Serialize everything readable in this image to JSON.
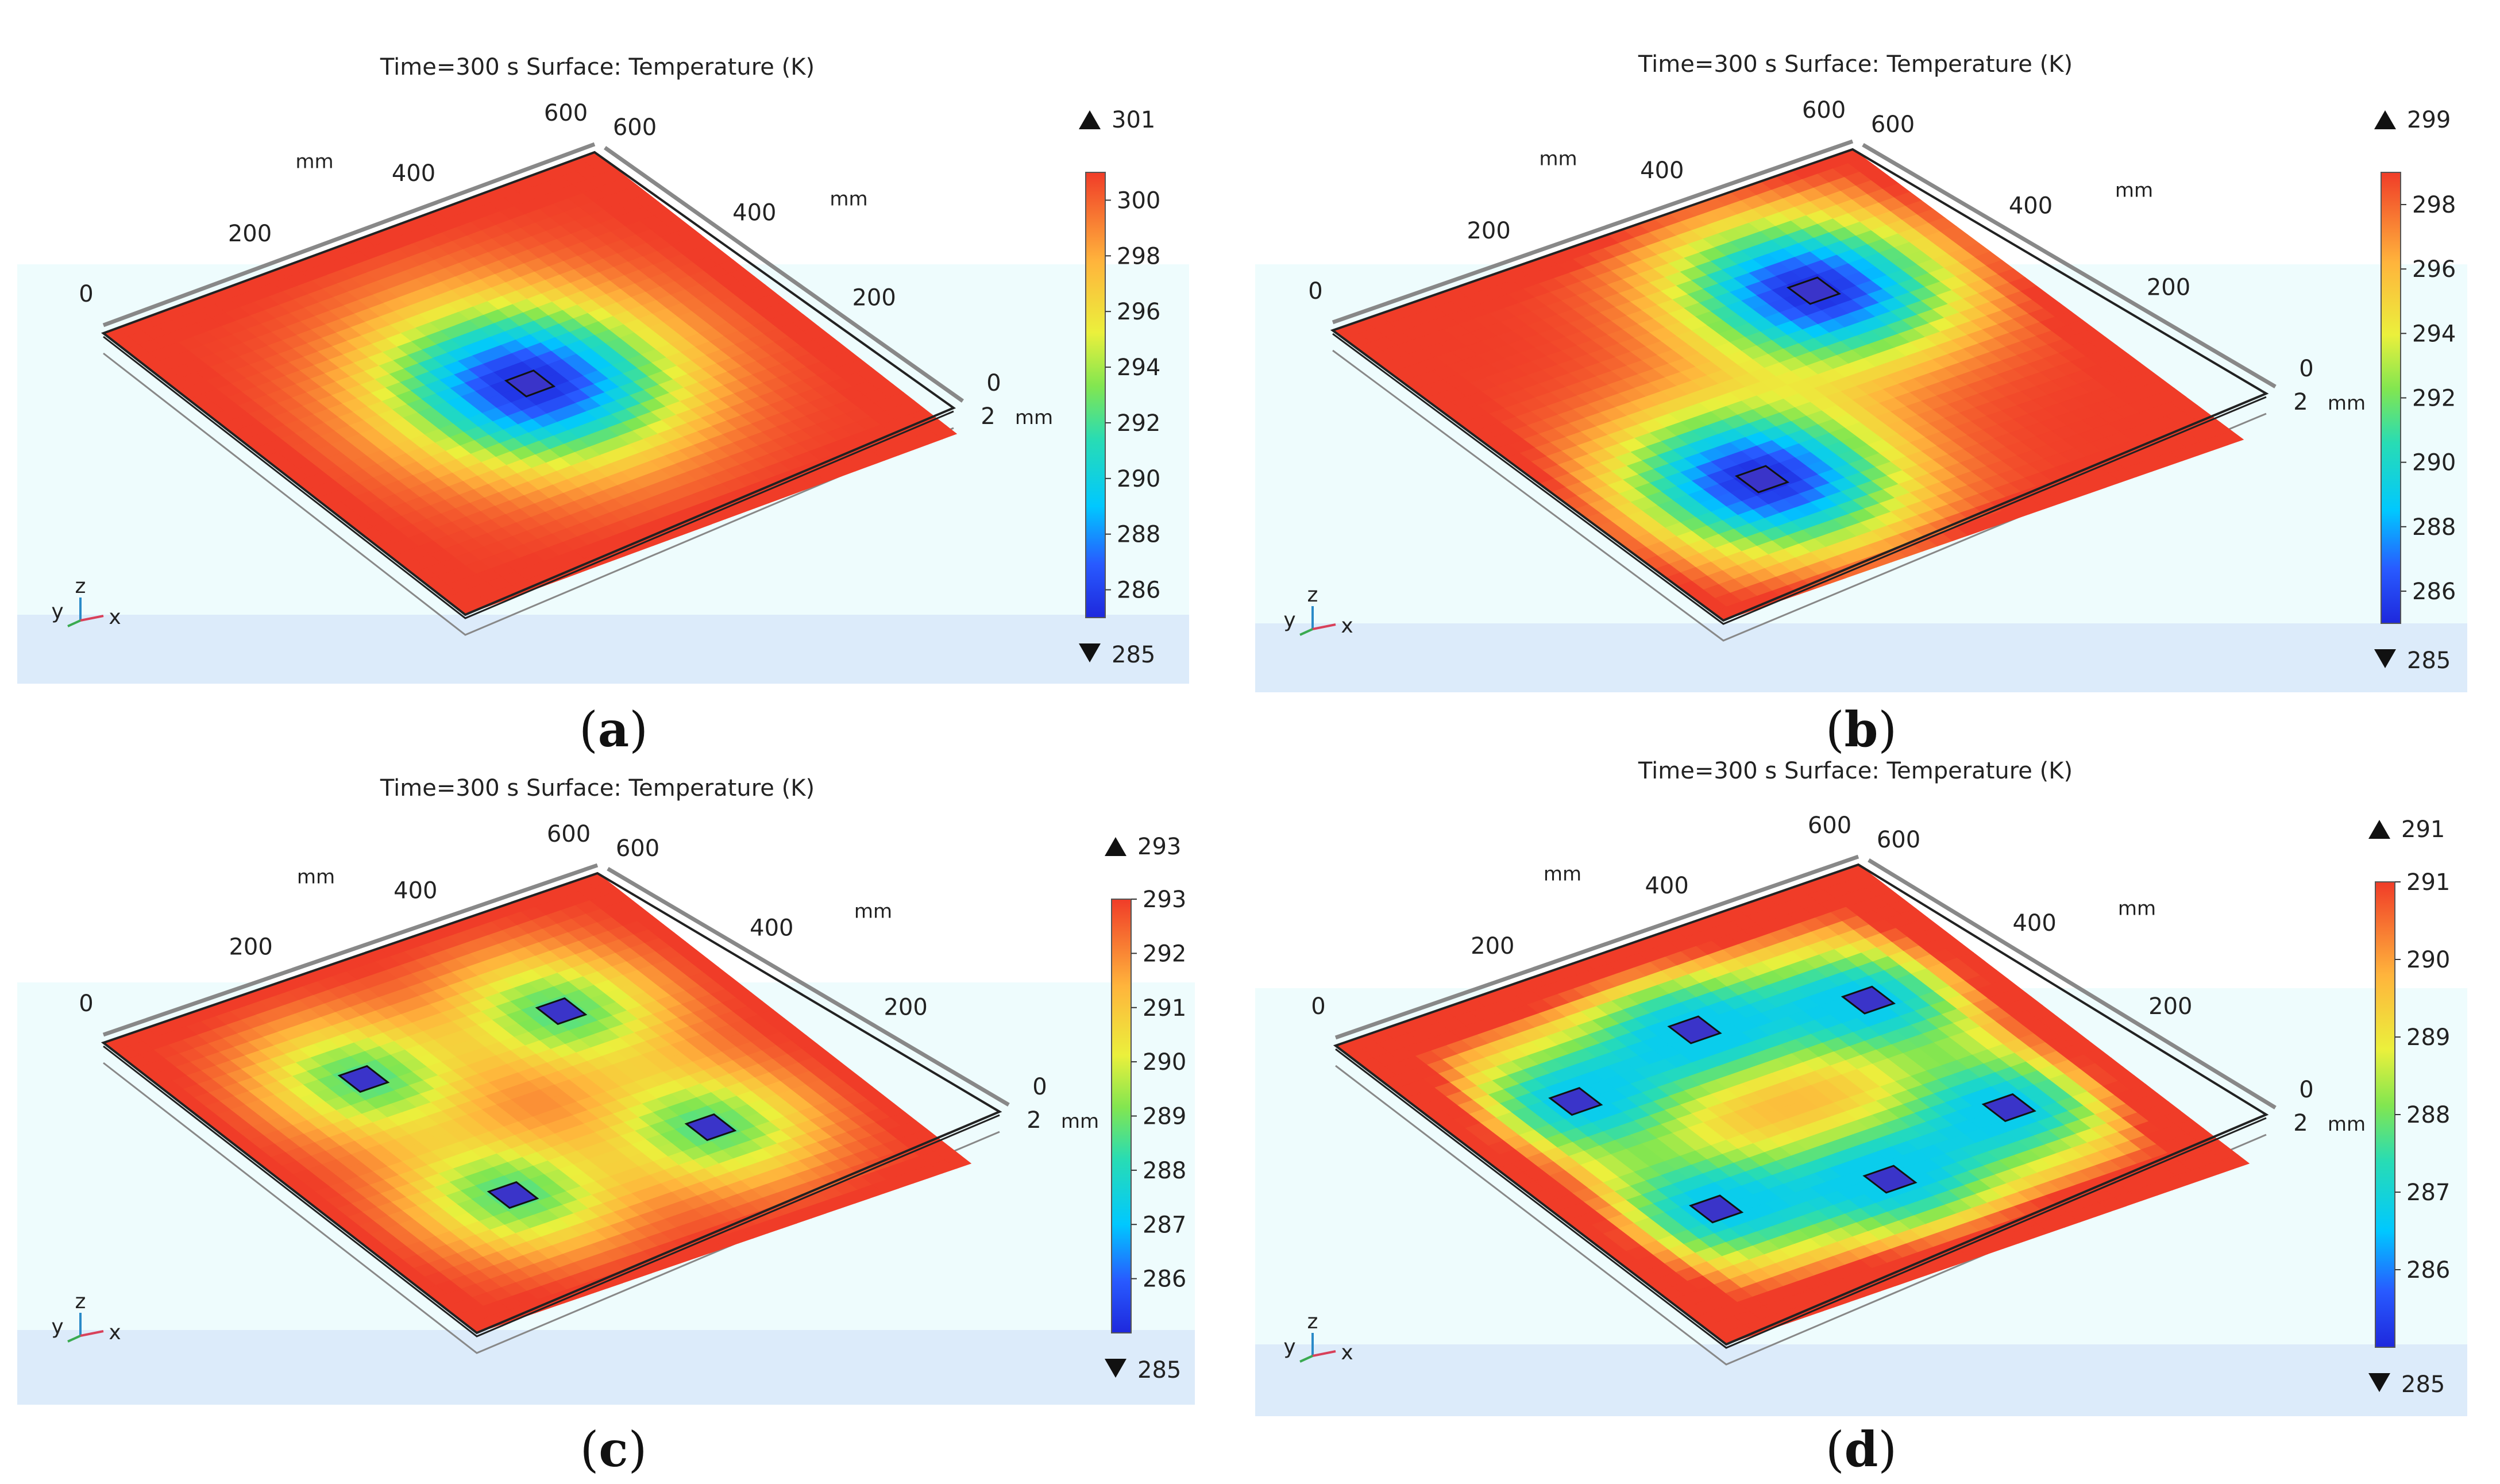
{
  "panels": [
    {
      "id": "a",
      "caption_letter": "a",
      "title_time": "Time=300 s",
      "title_surface": "Surface: Temperature (K)",
      "axis_left_label": "mm",
      "axis_right_label": "mm",
      "axis_z_label": "mm",
      "left_ticks": [
        "0",
        "200",
        "400",
        "600"
      ],
      "right_ticks": [
        "600",
        "400",
        "200",
        "0"
      ],
      "thickness_tick": "2",
      "colorbar": {
        "max_marker": "301",
        "min_marker": "285",
        "ticks": [
          "300",
          "298",
          "296",
          "294",
          "292",
          "290",
          "288",
          "286"
        ]
      },
      "triad": {
        "y": "y",
        "z": "z",
        "x": "x"
      },
      "sources": [
        {
          "u": 0.5,
          "v": 0.5
        }
      ],
      "min_T": 285,
      "max_T": 301
    },
    {
      "id": "b",
      "caption_letter": "b",
      "title_time": "Time=300 s",
      "title_surface": "Surface: Temperature (K)",
      "axis_left_label": "mm",
      "axis_right_label": "mm",
      "axis_z_label": "mm",
      "left_ticks": [
        "0",
        "200",
        "400",
        "600"
      ],
      "right_ticks": [
        "600",
        "400",
        "200",
        "0"
      ],
      "thickness_tick": "2",
      "colorbar": {
        "max_marker": "299",
        "min_marker": "285",
        "ticks": [
          "298",
          "296",
          "294",
          "292",
          "290",
          "288",
          "286"
        ]
      },
      "triad": {
        "y": "y",
        "z": "z",
        "x": "x"
      },
      "sources": [
        {
          "u": 0.3,
          "v": 0.7
        },
        {
          "u": 0.7,
          "v": 0.3
        }
      ],
      "min_T": 285,
      "max_T": 299
    },
    {
      "id": "c",
      "caption_letter": "c",
      "title_time": "Time=300 s",
      "title_surface": "Surface: Temperature (K)",
      "axis_left_label": "mm",
      "axis_right_label": "mm",
      "axis_z_label": "mm",
      "left_ticks": [
        "0",
        "200",
        "400",
        "600"
      ],
      "right_ticks": [
        "600",
        "400",
        "200",
        "0"
      ],
      "thickness_tick": "2",
      "colorbar": {
        "max_marker": "293",
        "min_marker": "285",
        "ticks": [
          "293",
          "292",
          "291",
          "290",
          "289",
          "288",
          "287",
          "286"
        ]
      },
      "triad": {
        "y": "y",
        "z": "z",
        "x": "x"
      },
      "sources": [
        {
          "u": 0.3,
          "v": 0.3
        },
        {
          "u": 0.7,
          "v": 0.3
        },
        {
          "u": 0.3,
          "v": 0.7
        },
        {
          "u": 0.7,
          "v": 0.7
        }
      ],
      "min_T": 285,
      "max_T": 293
    },
    {
      "id": "d",
      "caption_letter": "d",
      "title_time": "Time=300 s",
      "title_surface": "Surface: Temperature (K)",
      "axis_left_label": "mm",
      "axis_right_label": "mm",
      "axis_z_label": "mm",
      "left_ticks": [
        "0",
        "200",
        "400",
        "600"
      ],
      "right_ticks": [
        "600",
        "400",
        "200",
        "0"
      ],
      "thickness_tick": "2",
      "colorbar": {
        "max_marker": "291",
        "min_marker": "285",
        "ticks": [
          "291",
          "290",
          "289",
          "288",
          "287",
          "286"
        ]
      },
      "triad": {
        "y": "y",
        "z": "z",
        "x": "x"
      },
      "sources": [
        {
          "u": 0.22,
          "v": 0.32
        },
        {
          "u": 0.5,
          "v": 0.25
        },
        {
          "u": 0.78,
          "v": 0.32
        },
        {
          "u": 0.22,
          "v": 0.68
        },
        {
          "u": 0.5,
          "v": 0.75
        },
        {
          "u": 0.78,
          "v": 0.68
        }
      ],
      "min_T": 285,
      "max_T": 291
    }
  ],
  "colors": {
    "bg_light": "#eefcfd",
    "bg_lower": "#dcebfa",
    "frame": "#888888",
    "plate_edge": "#222222"
  }
}
